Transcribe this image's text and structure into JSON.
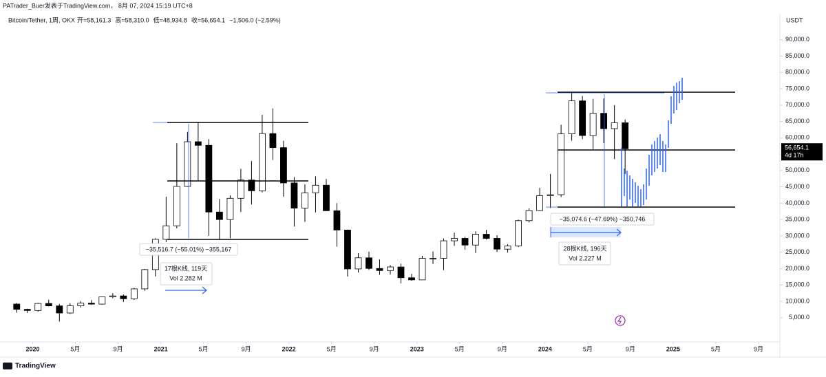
{
  "chart_data": {
    "type": "candlestick",
    "credit": "PATrader_Buer发表于TradingView.com， 8月 07, 2024 15:19 UTC+8",
    "symbol": "Bitcoin/Tether, 1周, OKX",
    "ohlc_header": [
      "开=58,161.3",
      "高=58,310.0",
      "低=48,934.8",
      "收=56,654.1",
      "−1,506.0 (−2.59%)"
    ],
    "currency": "USDT",
    "last_price_label": "56,654.1",
    "last_price": 56654.1,
    "countdown": "4d 17h",
    "x": [
      "2019-11",
      "2019-12",
      "2020-01",
      "2020-02",
      "2020-03",
      "2020-04",
      "2020-05",
      "2020-06",
      "2020-07",
      "2020-08",
      "2020-09",
      "2020-10",
      "2020-11",
      "2020-12",
      "2021-01",
      "2021-02",
      "2021-03",
      "2021-04",
      "2021-05",
      "2021-06",
      "2021-07",
      "2021-08",
      "2021-09",
      "2021-10",
      "2021-11",
      "2021-12",
      "2022-01",
      "2022-02",
      "2022-03",
      "2022-04",
      "2022-05",
      "2022-06",
      "2022-07",
      "2022-08",
      "2022-09",
      "2022-10",
      "2022-11",
      "2022-12",
      "2023-01",
      "2023-02",
      "2023-03",
      "2023-04",
      "2023-05",
      "2023-06",
      "2023-07",
      "2023-08",
      "2023-09",
      "2023-10",
      "2023-11",
      "2023-12",
      "2024-01",
      "2024-02",
      "2024-03",
      "2024-04",
      "2024-05",
      "2024-06",
      "2024-07",
      "2024-08"
    ],
    "open": [
      9150,
      7550,
      7190,
      9350,
      8600,
      6420,
      8630,
      9450,
      9140,
      11350,
      11650,
      10780,
      13800,
      19700,
      28950,
      33100,
      45140,
      58800,
      57700,
      37300,
      35000,
      41500,
      47100,
      43800,
      61300,
      57000,
      46200,
      38500,
      43200,
      45500,
      37700,
      31800,
      19900,
      23300,
      20050,
      19400,
      20500,
      17200,
      16550,
      23150,
      23150,
      28500,
      29250,
      27200,
      30500,
      29250,
      25950,
      26950,
      34650,
      37750,
      42300,
      42600,
      61200,
      71300,
      60700,
      67500,
      62800,
      64600
    ],
    "high": [
      9500,
      7750,
      9580,
      10500,
      9190,
      9470,
      10080,
      10380,
      11450,
      12480,
      12100,
      14100,
      19900,
      29300,
      41950,
      58350,
      61800,
      64850,
      59600,
      41300,
      42400,
      50500,
      52900,
      67000,
      69000,
      59100,
      48000,
      45800,
      48200,
      47400,
      40000,
      31900,
      24700,
      25200,
      22800,
      21100,
      21500,
      18400,
      23900,
      25250,
      29200,
      31000,
      29800,
      31400,
      31800,
      30200,
      27500,
      35000,
      38450,
      44700,
      48950,
      64000,
      73800,
      72800,
      71900,
      72000,
      70000,
      65600
    ],
    "low": [
      6500,
      6430,
      6850,
      8450,
      3800,
      6150,
      8100,
      8900,
      8970,
      10950,
      9800,
      10400,
      13200,
      17600,
      28130,
      32300,
      45000,
      47000,
      30000,
      28800,
      29300,
      37300,
      39600,
      43300,
      53250,
      42000,
      32900,
      34300,
      37200,
      37600,
      26700,
      17600,
      18800,
      19600,
      18100,
      18200,
      15500,
      16300,
      16500,
      21400,
      19550,
      26950,
      25800,
      24800,
      28900,
      25100,
      24900,
      26550,
      34100,
      37600,
      38550,
      41900,
      59100,
      59600,
      56600,
      58400,
      53500,
      48934.8
    ],
    "close": [
      7550,
      7190,
      9350,
      8600,
      6420,
      8630,
      9450,
      9140,
      11350,
      11650,
      10780,
      13800,
      19700,
      28950,
      33100,
      45140,
      58800,
      57700,
      37300,
      35000,
      41500,
      47100,
      43800,
      61300,
      57000,
      46200,
      38500,
      43200,
      45500,
      37700,
      31800,
      19900,
      23300,
      20050,
      19400,
      20500,
      17200,
      16550,
      23150,
      23150,
      28500,
      29250,
      27200,
      30500,
      29250,
      25950,
      26950,
      34650,
      37750,
      42300,
      42600,
      61200,
      71300,
      60700,
      67500,
      62800,
      64600,
      56654.1
    ],
    "xlim": [
      "2019-10",
      "2025-11"
    ],
    "xticks": [
      {
        "value": "2020-01",
        "label": "2020"
      },
      {
        "value": "2020-05",
        "label": "5月"
      },
      {
        "value": "2020-09",
        "label": "9月"
      },
      {
        "value": "2021-01",
        "label": "2021"
      },
      {
        "value": "2021-05",
        "label": "5月"
      },
      {
        "value": "2021-09",
        "label": "9月"
      },
      {
        "value": "2022-01",
        "label": "2022"
      },
      {
        "value": "2022-05",
        "label": "5月"
      },
      {
        "value": "2022-09",
        "label": "9月"
      },
      {
        "value": "2023-01",
        "label": "2023"
      },
      {
        "value": "2023-05",
        "label": "5月"
      },
      {
        "value": "2023-09",
        "label": "9月"
      },
      {
        "value": "2024-01",
        "label": "2024"
      },
      {
        "value": "2024-05",
        "label": "5月"
      },
      {
        "value": "2024-09",
        "label": "9月"
      },
      {
        "value": "2025-01",
        "label": "2025"
      },
      {
        "value": "2025-05",
        "label": "5月"
      },
      {
        "value": "2025-09",
        "label": "9月"
      }
    ],
    "ylim": [
      2000,
      99200
    ],
    "yticks": [
      {
        "value": 5000,
        "label": "5,000.0"
      },
      {
        "value": 10000,
        "label": "10,000.0"
      },
      {
        "value": 15000,
        "label": "15,000.0"
      },
      {
        "value": 20000,
        "label": "20,000.0"
      },
      {
        "value": 25000,
        "label": "25,000.0"
      },
      {
        "value": 30000,
        "label": "30,000.0"
      },
      {
        "value": 35000,
        "label": "35,000.0"
      },
      {
        "value": 40000,
        "label": "40,000.0"
      },
      {
        "value": 45000,
        "label": "45,000.0"
      },
      {
        "value": 50000,
        "label": "50,000.0"
      },
      {
        "value": 55000,
        "label": "55,000.0"
      },
      {
        "value": 60000,
        "label": "60,000.0"
      },
      {
        "value": 65000,
        "label": "65,000.0"
      },
      {
        "value": 70000,
        "label": "70,000.0"
      },
      {
        "value": 75000,
        "label": "75,000.0"
      },
      {
        "value": 80000,
        "label": "80,000.0"
      },
      {
        "value": 85000,
        "label": "85,000.0"
      },
      {
        "value": 90000,
        "label": "90,000.0"
      }
    ],
    "up_color": "#ffffff",
    "down_color": "#000000",
    "annotations": [
      "−35,516.7 (−55.01%) −355,167",
      "17根K线, 119天",
      "Vol 2.282 M",
      "−35,074.6 (−47.69%) −350,746",
      "28根K线, 196天",
      "Vol 2.227 M"
    ],
    "brand": "TradingView"
  }
}
